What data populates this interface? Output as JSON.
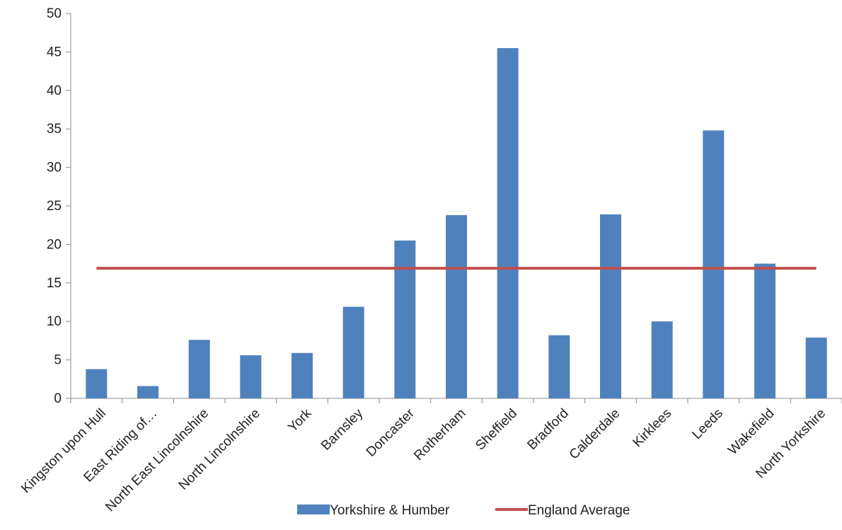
{
  "chart_data": {
    "type": "bar",
    "categories": [
      "Kingston upon Hull",
      "East Riding of…",
      "North East Lincolnshire",
      "North Lincolnshire",
      "York",
      "Barnsley",
      "Doncaster",
      "Rotherham",
      "Sheffield",
      "Bradford",
      "Calderdale",
      "Kirklees",
      "Leeds",
      "Wakefield",
      "North Yorkshire"
    ],
    "series": [
      {
        "name": "Yorkshire & Humber",
        "type": "bar",
        "color": "#4f81bd",
        "values": [
          3.8,
          1.6,
          7.6,
          5.6,
          5.9,
          11.9,
          20.5,
          23.8,
          45.5,
          8.2,
          23.9,
          10.0,
          34.8,
          17.5,
          7.9
        ]
      },
      {
        "name": "England Average",
        "type": "line",
        "color": "#c0504d",
        "values": [
          16.9,
          16.9,
          16.9,
          16.9,
          16.9,
          16.9,
          16.9,
          16.9,
          16.9,
          16.9,
          16.9,
          16.9,
          16.9,
          16.9,
          16.9
        ]
      }
    ],
    "yticks": [
      "0",
      "5",
      "10",
      "15",
      "20",
      "25",
      "30",
      "35",
      "40",
      "45",
      "50"
    ],
    "ylim": [
      0,
      50
    ],
    "grid": false,
    "legend_position": "bottom"
  }
}
